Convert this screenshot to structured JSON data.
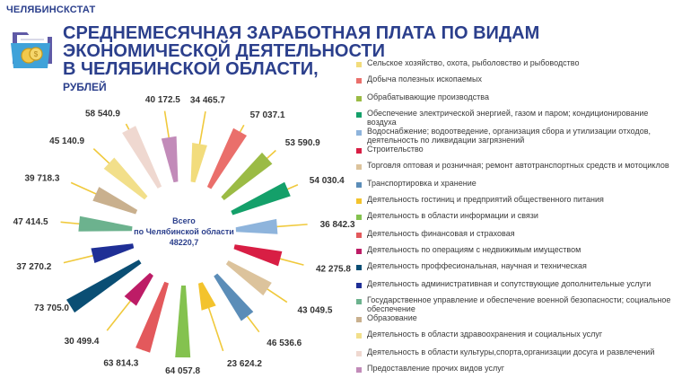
{
  "header": {
    "org": "ЧЕЛЯБИНСКСТАТ",
    "title_lines": [
      "СРЕДНЕМЕСЯЧНАЯ ЗАРАБОТНАЯ ПЛАТА ПО ВИДАМ",
      "ЭКОНОМИЧЕСКОЙ ДЕЯТЕЛЬНОСТИ",
      "В ЧЕЛЯБИНСКОЙ ОБЛАСТИ,"
    ],
    "unit": "РУБЛЕЙ"
  },
  "icon": "folder-with-coins-icon",
  "chart_data": {
    "type": "bar",
    "layout": "radial",
    "title": "СРЕДНЕМЕСЯЧНАЯ ЗАРАБОТНАЯ ПЛАТА ПО ВИДАМ ЭКОНОМИЧЕСКОЙ ДЕЯТЕЛЬНОСТИ В ЧЕЛЯБИНСКОЙ ОБЛАСТИ,",
    "ylabel": "РУБЛЕЙ",
    "center_label_lines": [
      "Всего",
      "по Челябинской области",
      "48220,7"
    ],
    "total": 48220.7,
    "legend_position": "right",
    "categories": [
      "Сельское хозяйство, охота, рыболовство и рыбоводство",
      "Добыча полезных ископаемых",
      "Обрабатывающие производства",
      "Обеспечение электрической энергией, газом и паром; кондиционирование воздуха",
      "Водоснабжение; водоотведение, организация сбора и утилизации отходов, деятельность по ликвидации загрязнений",
      "Строительство",
      "Торговля оптовая и розничная; ремонт автотранспортных средств и мотоциклов",
      "Транспортировка и хранение",
      "Деятельность гостиниц и предприятий общественного питания",
      "Деятельность в области информации и связи",
      "Деятельность финансовая и страховая",
      "Деятельность по операциям с недвижимым имуществом",
      "Деятельность проффесиональная, научная и техническая",
      "Деятельность административная и сопутствующие дополнительные услуги",
      "Государственное управление и обеспечение военной безопасности; социальное обеспечение",
      "Образование",
      "Деятельность в области здравоохранения и социальных услуг",
      "Деятельность в области культуры,спорта,организации досуга и развлечений",
      "Предоставление прочих видов услуг"
    ],
    "values": [
      34465.7,
      57037.1,
      53590.9,
      54030.4,
      36842.3,
      42275.8,
      43049.5,
      46536.6,
      23624.2,
      64057.8,
      63814.3,
      30499.4,
      73705.0,
      37270.2,
      47414.5,
      39718.3,
      45140.9,
      58540.9,
      40172.5
    ],
    "value_labels": [
      "34 465.7",
      "57 037.1",
      "53 590.9",
      "54 030.4",
      "36 842.3",
      "42 275.8",
      "43 049.5",
      "46 536.6",
      "23 624.2",
      "64 057.8",
      "63 814.3",
      "30 499.4",
      "73 705.0",
      "37 270.2",
      "47 414.5",
      "39 718.3",
      "45 140.9",
      "58 540.9",
      "40 172.5"
    ],
    "colors": [
      "#f2dc7c",
      "#ea6f6b",
      "#9bbb45",
      "#14a06a",
      "#8eb4dc",
      "#d81e44",
      "#dcc39c",
      "#5b8db8",
      "#f3c32d",
      "#84c24f",
      "#e3595c",
      "#bd1c66",
      "#0a4e74",
      "#1f2f96",
      "#6cb28e",
      "#c9b08e",
      "#f2df8a",
      "#efd8d0",
      "#c28bb9"
    ]
  }
}
